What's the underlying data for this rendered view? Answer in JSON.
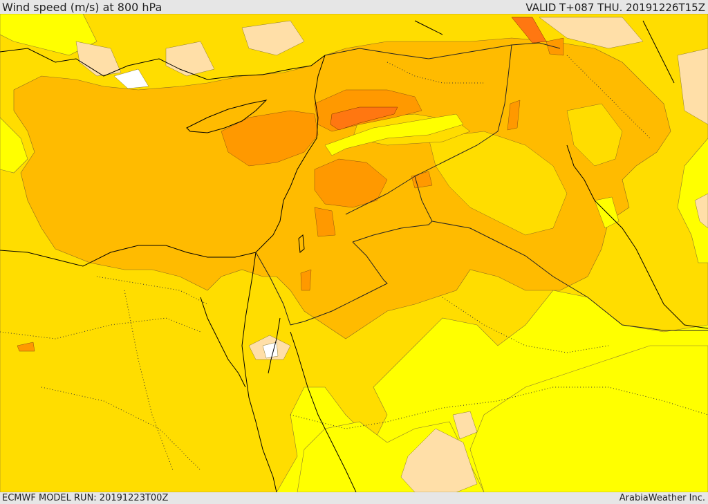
{
  "header": {
    "title": "Wind speed (m/s) at 800 hPa",
    "valid": "VALID T+087 THU. 20191226T15Z"
  },
  "footer": {
    "model_run": "ECMWF MODEL RUN: 20191223T00Z",
    "credit": "ArabiaWeather Inc."
  },
  "map": {
    "fill_colors": [
      "#ffffff",
      "#ffdfa8",
      "#ffff00",
      "#ffdd00",
      "#ffbb00",
      "#ff9900",
      "#ff7711"
    ],
    "coastline_color": "#000000",
    "border_color": "#222222",
    "contour_color": "#777777"
  }
}
